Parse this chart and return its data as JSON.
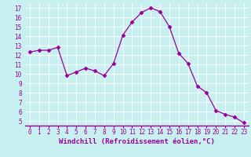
{
  "x": [
    0,
    1,
    2,
    3,
    4,
    5,
    6,
    7,
    8,
    9,
    10,
    11,
    12,
    13,
    14,
    15,
    16,
    17,
    18,
    19,
    20,
    21,
    22,
    23
  ],
  "y": [
    12.3,
    12.5,
    12.5,
    12.8,
    9.8,
    10.2,
    10.6,
    10.3,
    9.8,
    11.1,
    14.1,
    15.5,
    16.5,
    17.0,
    16.6,
    15.0,
    12.2,
    11.1,
    8.7,
    8.0,
    6.1,
    5.7,
    5.4,
    4.8
  ],
  "line_color": "#990099",
  "marker": "D",
  "marker_size": 2.5,
  "bg_color": "#c8f0f0",
  "grid_color": "#ffffff",
  "xlabel": "Windchill (Refroidissement éolien,°C)",
  "xlabel_color": "#990099",
  "ylabel_ticks": [
    5,
    6,
    7,
    8,
    9,
    10,
    11,
    12,
    13,
    14,
    15,
    16,
    17
  ],
  "xticks": [
    0,
    1,
    2,
    3,
    4,
    5,
    6,
    7,
    8,
    9,
    10,
    11,
    12,
    13,
    14,
    15,
    16,
    17,
    18,
    19,
    20,
    21,
    22,
    23
  ],
  "xlim": [
    -0.5,
    23.5
  ],
  "ylim": [
    4.5,
    17.5
  ],
  "tick_color": "#990099",
  "tick_fontsize": 5.5,
  "xlabel_fontsize": 6.5,
  "linewidth": 0.9
}
